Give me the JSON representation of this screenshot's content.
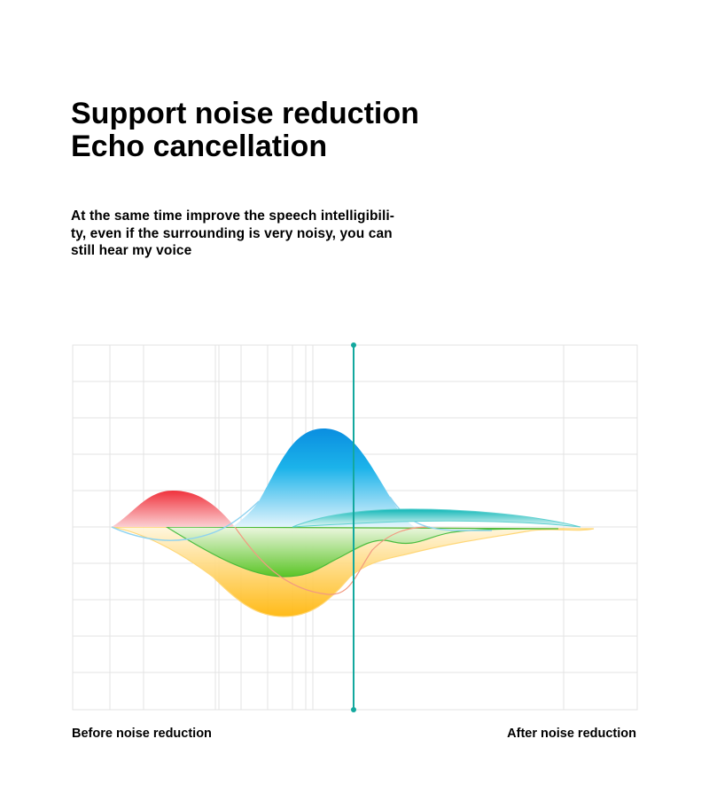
{
  "heading": {
    "line1": "Support noise reduction",
    "line2": "Echo cancellation"
  },
  "description": {
    "line1": "At the same time improve the speech intelligibili-",
    "line2": "ty, even if the surrounding is very noisy, you can",
    "line3": "still hear my voice"
  },
  "chart": {
    "left_label": "Before noise reduction",
    "right_label": "After noise reduction",
    "divider_color": "#13a89e"
  }
}
